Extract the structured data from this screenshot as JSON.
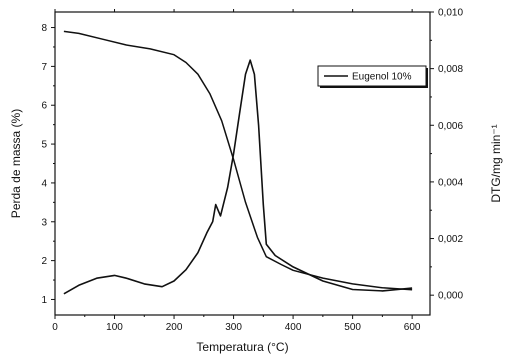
{
  "chart_data": {
    "type": "line",
    "title": "",
    "xlabel": "Temperatura (°C)",
    "ylabel_left": "Perda de massa (%)",
    "ylabel_right": "DTG/mg min⁻¹",
    "xlim": [
      0,
      630
    ],
    "ylim_left": [
      0.6,
      8.4
    ],
    "ylim_right": [
      -0.0007,
      0.01
    ],
    "xticks": [
      0,
      100,
      200,
      300,
      400,
      500,
      600
    ],
    "yticks_left": [
      1,
      2,
      3,
      4,
      5,
      6,
      7,
      8
    ],
    "yticks_right": [
      "0,000",
      "0,002",
      "0,004",
      "0,006",
      "0,008",
      "0,010"
    ],
    "yticks_right_values": [
      0,
      0.002,
      0.004,
      0.006,
      0.008,
      0.01
    ],
    "grid": false,
    "legend_position": "top-right",
    "series": [
      {
        "name": "Eugenol 10%",
        "axis": "right",
        "x": [
          15,
          40,
          70,
          100,
          120,
          150,
          180,
          200,
          220,
          240,
          255,
          265,
          270,
          278,
          290,
          300,
          310,
          320,
          328,
          335,
          342,
          350,
          355,
          370,
          400,
          450,
          500,
          550,
          600
        ],
        "y": [
          5e-05,
          0.00035,
          0.0006,
          0.0007,
          0.0006,
          0.0004,
          0.0003,
          0.0005,
          0.0009,
          0.0015,
          0.0022,
          0.0026,
          0.0032,
          0.0028,
          0.0038,
          0.005,
          0.0064,
          0.0078,
          0.0083,
          0.0078,
          0.006,
          0.0032,
          0.0018,
          0.0014,
          0.001,
          0.0005,
          0.0002,
          0.00015,
          0.00025
        ]
      },
      {
        "name": "",
        "axis": "left",
        "x": [
          15,
          40,
          80,
          120,
          160,
          200,
          220,
          240,
          260,
          280,
          300,
          320,
          340,
          355,
          380,
          400,
          450,
          500,
          550,
          600
        ],
        "y": [
          7.9,
          7.85,
          7.7,
          7.55,
          7.45,
          7.3,
          7.1,
          6.8,
          6.3,
          5.6,
          4.6,
          3.5,
          2.6,
          2.1,
          1.9,
          1.75,
          1.55,
          1.4,
          1.3,
          1.25
        ]
      }
    ]
  }
}
